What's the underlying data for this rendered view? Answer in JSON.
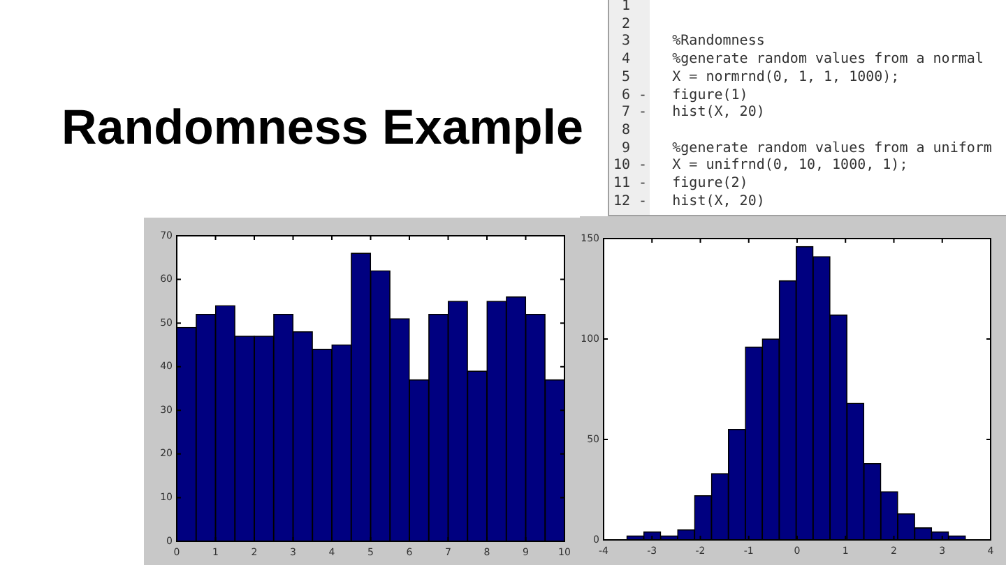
{
  "chart_data": [
    {
      "type": "other",
      "title": "Randomness Example",
      "annotations": [
        " 1",
        " 2",
        " 3     %Randomness",
        " 4     %generate random values from a normal",
        " 5     X = normrnd(0, 1, 1, 1000);",
        " 6 -   figure(1)",
        " 7 -   hist(X, 20)",
        " 8",
        " 9     %generate random values from a uniform",
        "10 -   X = unifrnd(0, 10, 1000, 1);",
        "11 -   figure(2)",
        "12 -   hist(X, 20)"
      ]
    },
    {
      "type": "histogram",
      "bins": [
        0,
        0.5,
        1,
        1.5,
        2,
        2.5,
        3,
        3.5,
        4,
        4.5,
        5,
        5.5,
        6,
        6.5,
        7,
        7.5,
        8,
        8.5,
        9,
        9.5,
        10
      ],
      "values": [
        49,
        52,
        54,
        47,
        47,
        52,
        48,
        44,
        45,
        66,
        62,
        51,
        37,
        52,
        55,
        39,
        55,
        56,
        52,
        37
      ],
      "color": "#000080",
      "xlim": [
        0,
        10
      ],
      "xticks": [
        0,
        1,
        2,
        3,
        4,
        5,
        6,
        7,
        8,
        9,
        10
      ],
      "ylim": [
        0,
        70
      ],
      "yticks": [
        0,
        10,
        20,
        30,
        40,
        50,
        60,
        70
      ]
    },
    {
      "type": "histogram",
      "bins": [
        -3.52,
        -3.17,
        -2.82,
        -2.47,
        -2.12,
        -1.77,
        -1.42,
        -1.07,
        -0.72,
        -0.37,
        -0.02,
        0.33,
        0.68,
        1.03,
        1.38,
        1.73,
        2.08,
        2.43,
        2.78,
        3.13,
        3.48
      ],
      "values": [
        2,
        4,
        2,
        5,
        22,
        33,
        55,
        96,
        100,
        129,
        146,
        141,
        112,
        68,
        38,
        24,
        13,
        6,
        4,
        2
      ],
      "color": "#000080",
      "xlim": [
        -4,
        4
      ],
      "xticks": [
        -4,
        -3,
        -2,
        -1,
        0,
        1,
        2,
        3,
        4
      ],
      "ylim": [
        0,
        150
      ],
      "yticks": [
        0,
        50,
        100,
        150
      ]
    }
  ]
}
